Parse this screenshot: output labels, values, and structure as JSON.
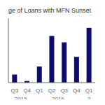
{
  "chart_data": {
    "type": "bar",
    "title": "ge of Loans with MFN Sunset",
    "categories": [
      "Q3",
      "Q4",
      "Q1",
      "Q2",
      "Q3",
      "Q4",
      "Q1"
    ],
    "values": [
      10,
      2,
      20,
      58,
      50,
      32,
      68
    ],
    "color": "#0d0d6b",
    "ylim": [
      0,
      80
    ],
    "annotations": [
      {
        "text": "2015",
        "x": 0.5
      },
      {
        "text": "2016",
        "x": 3.5
      },
      {
        "text": "2",
        "x": 6.0
      }
    ],
    "tick_labels": "x",
    "grid": false
  }
}
